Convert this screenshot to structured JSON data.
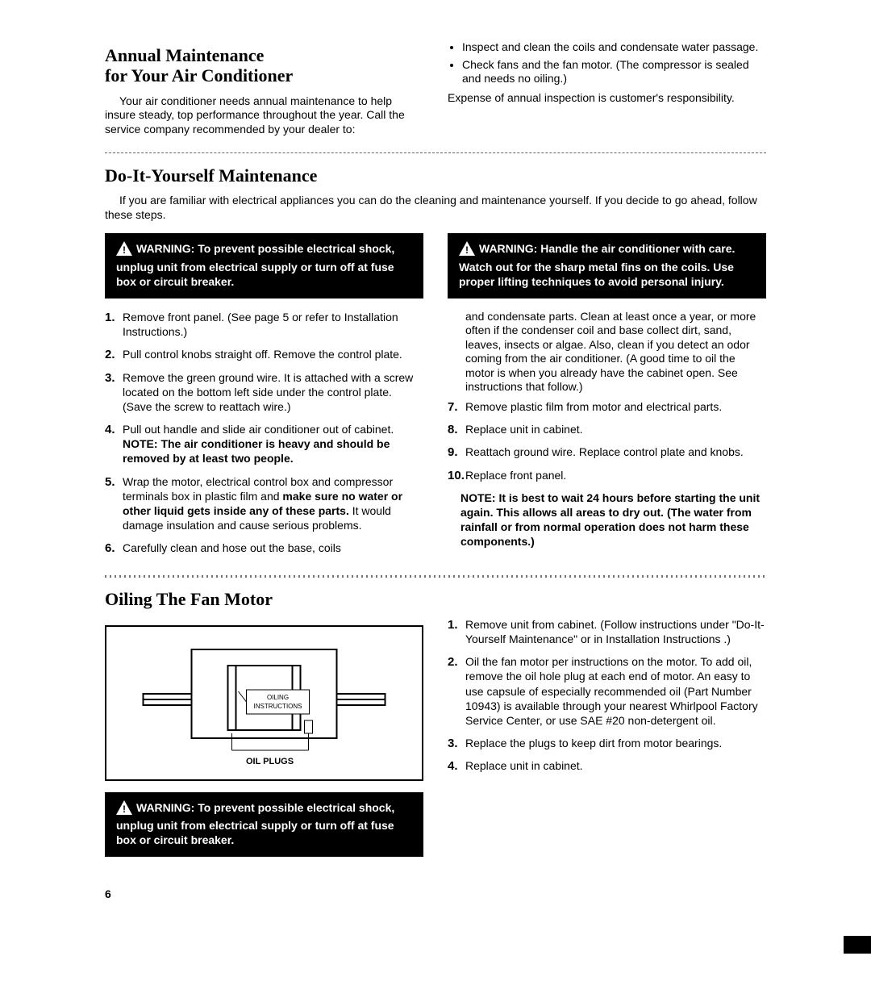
{
  "annual": {
    "title": "Annual Maintenance\nfor Your Air Conditioner",
    "intro": "Your air conditioner needs annual maintenance to help insure steady, top performance throughout the year. Call the service company recommended by your dealer to:",
    "bullets": [
      "Inspect and clean the coils and condensate water passage.",
      "Check fans and the fan motor. (The compressor is sealed and needs no oiling.)"
    ],
    "expense": "Expense of annual inspection is customer's responsibility."
  },
  "diy": {
    "title": "Do-It-Yourself Maintenance",
    "intro": "If you are familiar with electrical appliances you can do the cleaning and maintenance yourself. If you decide to go ahead, follow these steps.",
    "warn_left": "WARNING: To prevent possible electrical shock, unplug unit from electrical supply or turn off at fuse box or circuit breaker.",
    "warn_right": "WARNING: Handle the air conditioner with care. Watch out for the sharp metal fins on the coils. Use proper lifting techniques to avoid personal injury.",
    "steps_left": [
      {
        "text": "Remove front panel. (See page 5 or refer to Installation Instructions.)"
      },
      {
        "text": "Pull control knobs straight off. Remove the control plate."
      },
      {
        "text": "Remove the green ground wire. It is attached with a screw located on the bottom left side under the control plate. (Save the screw to reattach wire.)"
      },
      {
        "text": "Pull out handle and slide air conditioner out of cabinet. ",
        "bold": "NOTE: The air conditioner is heavy and should be removed by at least two people."
      },
      {
        "text": "Wrap the motor, electrical control box and compressor terminals box in plastic film and ",
        "bold": "make sure no water or other liquid gets inside any of these parts.",
        "text2": " It would damage insulation and cause serious problems."
      },
      {
        "text": "Carefully clean and hose out the base, coils"
      }
    ],
    "continuation": "and condensate parts. Clean at least once a year, or more often if the condenser coil and base collect dirt, sand, leaves, insects or algae. Also, clean if you detect an odor coming from the air conditioner. (A good time to oil the motor is when you already have the cabinet open. See instructions that follow.)",
    "steps_right": [
      {
        "text": "Remove plastic film from motor and electrical parts."
      },
      {
        "text": "Replace unit in cabinet."
      },
      {
        "text": "Reattach ground wire. Replace control plate and knobs."
      },
      {
        "text": "Replace front panel."
      }
    ],
    "note": "NOTE: It is best to wait 24 hours before starting the unit again. This allows all areas to dry out. (The water from rainfall or from normal operation does not harm these components.)"
  },
  "oiling": {
    "title": "Oiling The Fan Motor",
    "diagram_label": "OILING INSTRUCTIONS",
    "diagram_caption": "OIL PLUGS",
    "warn": "WARNING: To prevent possible electrical shock, unplug unit from electrical supply or turn off at fuse box or circuit breaker.",
    "steps": [
      {
        "text": "Remove unit from cabinet. (Follow instructions under \"Do-It-Yourself Maintenance\" or in Installation Instructions .)"
      },
      {
        "text": "Oil the fan motor per instructions on the motor. To add oil, remove the oil hole plug at each end of motor. An easy to use capsule of especially recommended oil (Part Number 10943) is available through your nearest Whirlpool Factory Service Center, or use SAE #20 non-detergent oil."
      },
      {
        "text": "Replace the plugs to keep dirt from motor bearings."
      },
      {
        "text": "Replace unit in cabinet."
      }
    ]
  },
  "page_number": "6"
}
